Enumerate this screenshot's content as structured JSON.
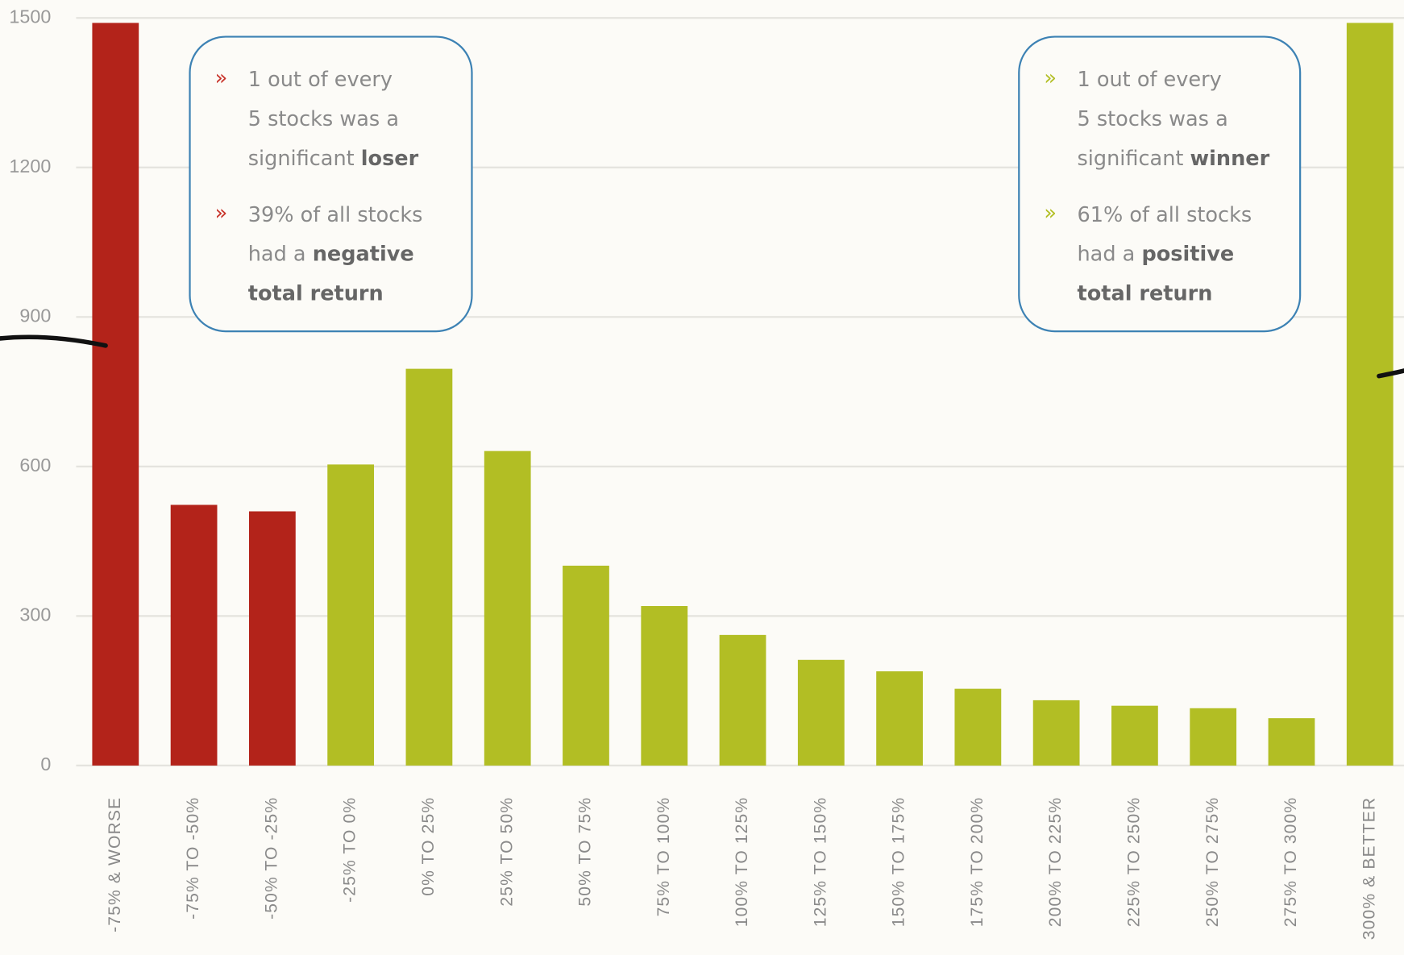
{
  "chart_data": {
    "type": "bar",
    "categories": [
      "-75% & WORSE",
      "-75% TO -50%",
      "-50% TO -25%",
      "-25% TO 0%",
      "0% TO 25%",
      "25% TO 50%",
      "50% TO 75%",
      "75% TO 100%",
      "100% TO 125%",
      "125% TO 150%",
      "150% TO 175%",
      "175% TO 200%",
      "200% TO 225%",
      "225% TO 250%",
      "250% TO 275%",
      "275% TO 300%",
      "300% & BETTER"
    ],
    "values": [
      1490,
      523,
      510,
      604,
      796,
      631,
      401,
      320,
      262,
      212,
      189,
      154,
      131,
      120,
      115,
      95,
      1490
    ],
    "colors": [
      "#b3231a",
      "#b3231a",
      "#b3231a",
      "#b2be24",
      "#b2be24",
      "#b2be24",
      "#b2be24",
      "#b2be24",
      "#b2be24",
      "#b2be24",
      "#b2be24",
      "#b2be24",
      "#b2be24",
      "#b2be24",
      "#b2be24",
      "#b2be24",
      "#b2be24"
    ],
    "ylim": [
      0,
      1500
    ],
    "yticks": [
      0,
      300,
      600,
      900,
      1200,
      1500
    ],
    "grid": true,
    "annotations": [
      {
        "bullet_color": "#c8332a",
        "bullets": [
          {
            "mark": "»",
            "lines": [
              [
                {
                  "text": "1 out of every",
                  "bold": false
                }
              ],
              [
                {
                  "text": "5 stocks was a",
                  "bold": false
                }
              ],
              [
                {
                  "text": "significant",
                  "bold": false
                },
                {
                  "text": "loser",
                  "bold": true
                }
              ]
            ]
          },
          {
            "mark": "»",
            "lines": [
              [
                {
                  "text": "39% of all stocks",
                  "bold": false
                }
              ],
              [
                {
                  "text": "had a",
                  "bold": false
                },
                {
                  "text": "negative",
                  "bold": true
                }
              ],
              [
                {
                  "text": "total return",
                  "bold": true
                }
              ]
            ]
          }
        ]
      },
      {
        "bullet_color": "#b2be24",
        "bullets": [
          {
            "mark": "»",
            "lines": [
              [
                {
                  "text": "1 out of every",
                  "bold": false
                }
              ],
              [
                {
                  "text": "5 stocks was a",
                  "bold": false
                }
              ],
              [
                {
                  "text": "significant",
                  "bold": false
                },
                {
                  "text": "winner",
                  "bold": true
                }
              ]
            ]
          },
          {
            "mark": "»",
            "lines": [
              [
                {
                  "text": "61% of all stocks",
                  "bold": false
                }
              ],
              [
                {
                  "text": "had a",
                  "bold": false
                },
                {
                  "text": "positive",
                  "bold": true
                }
              ],
              [
                {
                  "text": "total return",
                  "bold": true
                }
              ]
            ]
          }
        ]
      }
    ]
  }
}
